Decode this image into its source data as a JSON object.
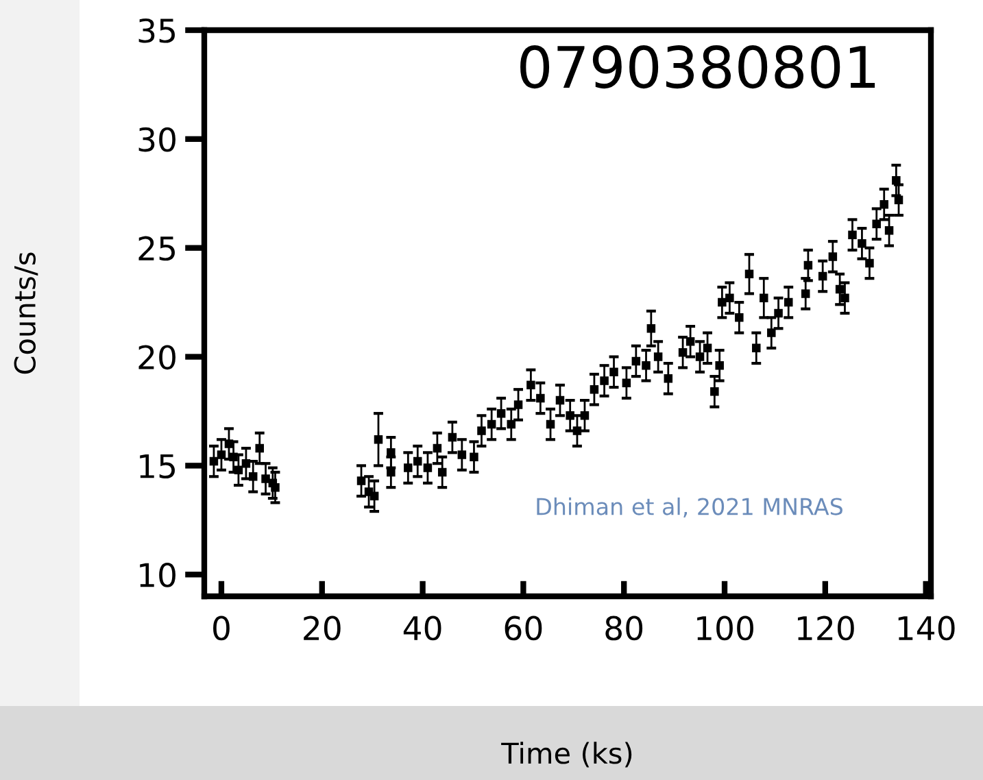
{
  "chart_data": {
    "type": "scatter",
    "title": "0790380801",
    "xlabel": "Time (ks)",
    "ylabel": "Counts/s",
    "xlim": [
      -3.4,
      141
    ],
    "ylim": [
      9,
      35
    ],
    "xticks": [
      0,
      20,
      40,
      60,
      80,
      100,
      120,
      140
    ],
    "yticks": [
      10,
      15,
      20,
      25,
      30,
      35
    ],
    "marker": "square",
    "grid": false,
    "legend": false,
    "annotations": [
      "Dhiman et al, 2021 MNRAS"
    ],
    "series": [
      {
        "color": "#000000",
        "x": [
          -1.5,
          0,
          1.5,
          2.4,
          3.4,
          4.9,
          6.3,
          7.6,
          8.8,
          10.2,
          10.7,
          27.8,
          29.3,
          30.4,
          31.2,
          33.7,
          33.7,
          37.1,
          39.0,
          41.0,
          42.9,
          43.9,
          45.9,
          47.8,
          50.2,
          51.7,
          53.7,
          55.6,
          57.6,
          59.0,
          61.5,
          63.4,
          65.4,
          67.3,
          69.3,
          70.7,
          72.2,
          74.1,
          76.1,
          78.0,
          80.5,
          82.4,
          84.4,
          85.4,
          86.8,
          88.8,
          91.7,
          93.2,
          95.1,
          96.6,
          98.0,
          99.0,
          99.5,
          101.0,
          102.9,
          104.9,
          106.3,
          107.8,
          109.3,
          110.7,
          112.7,
          116.1,
          116.6,
          119.5,
          121.5,
          122.9,
          123.9,
          125.4,
          127.3,
          128.8,
          130.2,
          131.7,
          132.7,
          134.1,
          134.6
        ],
        "values": [
          15.2,
          15.5,
          16.0,
          15.4,
          14.8,
          15.1,
          14.5,
          15.8,
          14.4,
          14.2,
          14.0,
          14.3,
          13.8,
          13.6,
          16.2,
          15.6,
          14.7,
          14.9,
          15.2,
          14.9,
          15.8,
          14.7,
          16.3,
          15.5,
          15.4,
          16.6,
          16.9,
          17.4,
          16.9,
          17.8,
          18.7,
          18.1,
          16.9,
          18.0,
          17.3,
          16.6,
          17.3,
          18.5,
          18.9,
          19.3,
          18.8,
          19.8,
          19.6,
          21.3,
          20.0,
          19.0,
          20.2,
          20.7,
          20.0,
          20.4,
          18.4,
          19.6,
          22.5,
          22.7,
          21.8,
          23.8,
          20.4,
          22.7,
          21.1,
          22.0,
          22.5,
          22.9,
          24.2,
          23.7,
          24.6,
          23.1,
          22.7,
          25.6,
          25.2,
          24.3,
          26.1,
          27.0,
          25.8,
          28.1,
          27.2
        ],
        "errors": [
          0.7,
          0.7,
          0.7,
          0.7,
          0.7,
          0.7,
          0.7,
          0.7,
          0.7,
          0.7,
          0.7,
          0.7,
          0.7,
          0.7,
          1.2,
          0.7,
          0.7,
          0.7,
          0.7,
          0.7,
          0.7,
          0.7,
          0.7,
          0.7,
          0.7,
          0.7,
          0.7,
          0.7,
          0.7,
          0.7,
          0.7,
          0.7,
          0.7,
          0.7,
          0.7,
          0.7,
          0.7,
          0.7,
          0.7,
          0.7,
          0.7,
          0.7,
          0.7,
          0.8,
          0.7,
          0.7,
          0.7,
          0.7,
          0.7,
          0.7,
          0.7,
          0.7,
          0.7,
          0.7,
          0.7,
          0.9,
          0.7,
          0.9,
          0.7,
          0.7,
          0.7,
          0.7,
          0.7,
          0.7,
          0.7,
          0.7,
          0.7,
          0.7,
          0.7,
          0.7,
          0.7,
          0.7,
          0.7,
          0.7,
          0.7
        ]
      }
    ]
  }
}
